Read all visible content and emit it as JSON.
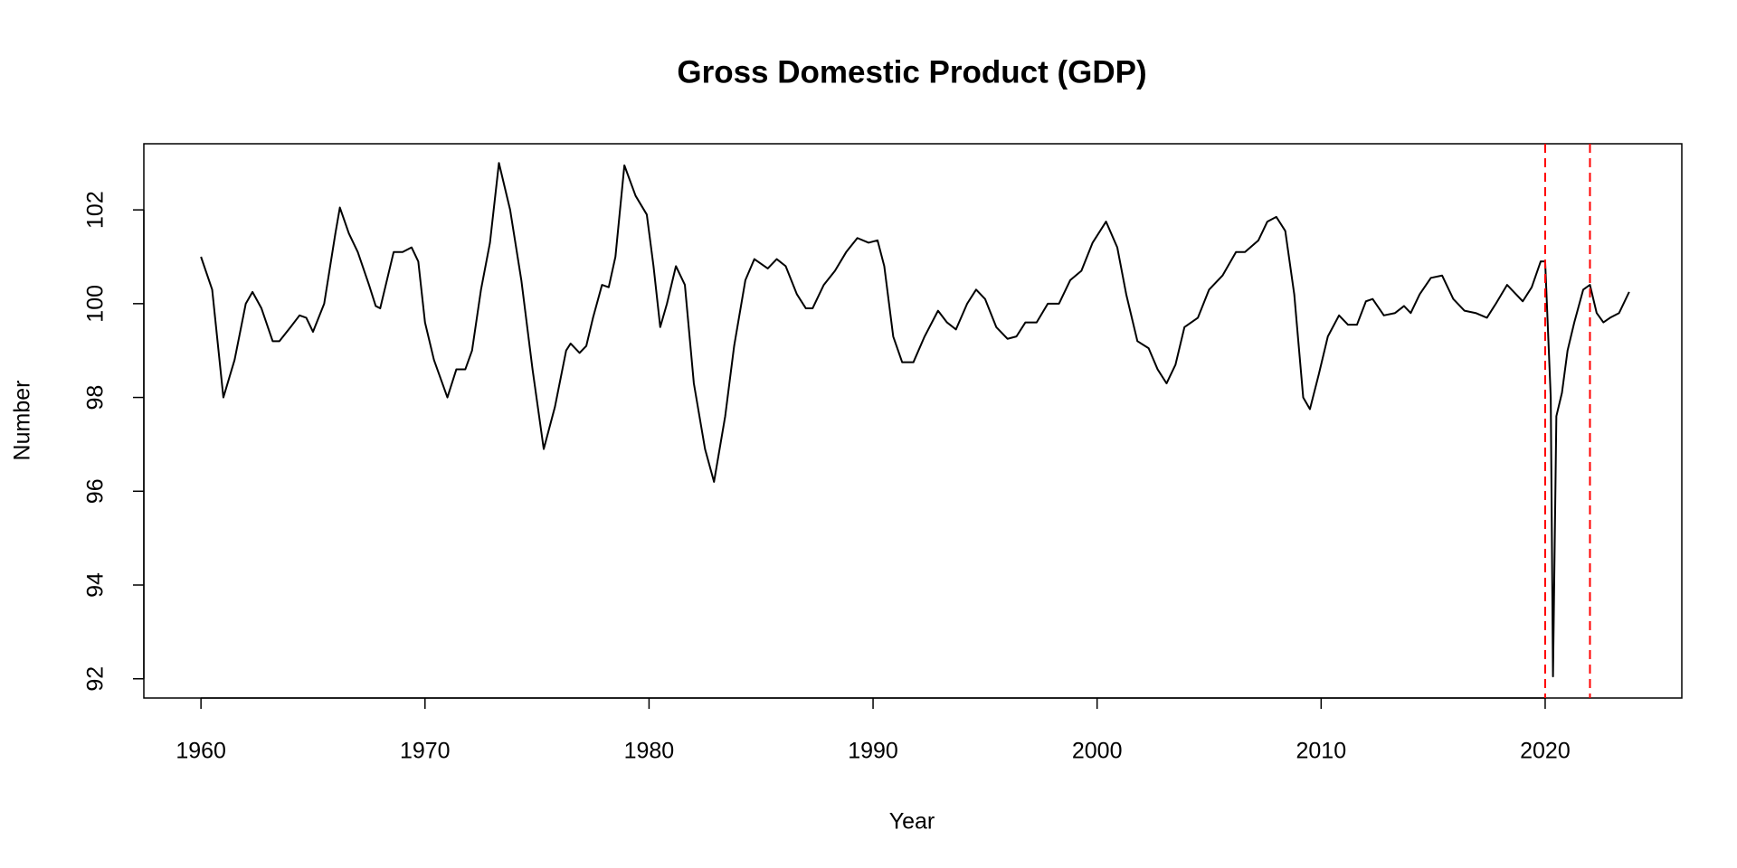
{
  "chart_data": {
    "type": "line",
    "title": "Gross Domestic Product (GDP)",
    "x_label": "Year",
    "y_label": "Number",
    "x": [
      1960.0,
      1960.5,
      1961.0,
      1961.5,
      1962.0,
      1962.3,
      1962.7,
      1963.2,
      1963.5,
      1964.0,
      1964.4,
      1964.7,
      1965.0,
      1965.5,
      1966.0,
      1966.2,
      1966.6,
      1967.0,
      1967.5,
      1967.8,
      1968.0,
      1968.3,
      1968.6,
      1969.0,
      1969.4,
      1969.7,
      1970.0,
      1970.4,
      1971.0,
      1971.4,
      1971.8,
      1972.1,
      1972.5,
      1972.9,
      1973.3,
      1973.8,
      1974.3,
      1974.8,
      1975.3,
      1975.8,
      1976.3,
      1976.5,
      1976.9,
      1977.2,
      1977.5,
      1977.9,
      1978.2,
      1978.5,
      1978.9,
      1979.4,
      1979.9,
      1980.2,
      1980.5,
      1980.8,
      1981.2,
      1981.6,
      1982.0,
      1982.5,
      1982.9,
      1983.4,
      1983.8,
      1984.3,
      1984.7,
      1985.3,
      1985.7,
      1986.1,
      1986.6,
      1987.0,
      1987.3,
      1987.8,
      1988.3,
      1988.8,
      1989.3,
      1989.8,
      1990.2,
      1990.5,
      1990.9,
      1991.3,
      1991.8,
      1992.3,
      1992.9,
      1993.3,
      1993.7,
      1994.2,
      1994.6,
      1995.0,
      1995.5,
      1996.0,
      1996.4,
      1996.8,
      1997.3,
      1997.8,
      1998.3,
      1998.8,
      1999.3,
      1999.8,
      2000.4,
      2000.9,
      2001.3,
      2001.8,
      2002.3,
      2002.7,
      2003.1,
      2003.5,
      2003.9,
      2004.5,
      2005.0,
      2005.6,
      2006.2,
      2006.6,
      2007.2,
      2007.6,
      2008.0,
      2008.4,
      2008.8,
      2009.2,
      2009.5,
      2009.9,
      2010.3,
      2010.8,
      2011.2,
      2011.6,
      2012.0,
      2012.3,
      2012.8,
      2013.3,
      2013.7,
      2014.0,
      2014.4,
      2014.9,
      2015.4,
      2015.9,
      2016.4,
      2016.9,
      2017.4,
      2017.8,
      2018.3,
      2018.7,
      2019.0,
      2019.4,
      2019.8,
      2020.0,
      2020.25,
      2020.35,
      2020.5,
      2020.75,
      2021.0,
      2021.3,
      2021.7,
      2022.0,
      2022.3,
      2022.6,
      2022.9,
      2023.3,
      2023.75
    ],
    "series": [
      {
        "color": "#000000",
        "values": [
          101.0,
          100.3,
          98.0,
          98.8,
          100.0,
          100.25,
          99.9,
          99.2,
          99.2,
          99.5,
          99.75,
          99.7,
          99.4,
          100.0,
          101.5,
          102.05,
          101.5,
          101.1,
          100.4,
          99.95,
          99.9,
          100.5,
          101.1,
          101.1,
          101.2,
          100.9,
          99.6,
          98.8,
          98.0,
          98.6,
          98.6,
          99.0,
          100.3,
          101.3,
          103.0,
          102.0,
          100.5,
          98.6,
          96.9,
          97.8,
          99.0,
          99.15,
          98.95,
          99.1,
          99.7,
          100.4,
          100.35,
          101.0,
          102.95,
          102.3,
          101.9,
          100.8,
          99.5,
          100.0,
          100.8,
          100.4,
          98.3,
          96.9,
          96.2,
          97.6,
          99.1,
          100.5,
          100.95,
          100.75,
          100.95,
          100.8,
          100.2,
          99.9,
          99.9,
          100.4,
          100.7,
          101.1,
          101.4,
          101.3,
          101.35,
          100.8,
          99.3,
          98.75,
          98.75,
          99.3,
          99.85,
          99.6,
          99.45,
          100.0,
          100.3,
          100.1,
          99.5,
          99.25,
          99.3,
          99.6,
          99.6,
          100.0,
          100.0,
          100.5,
          100.7,
          101.3,
          101.75,
          101.2,
          100.2,
          99.2,
          99.05,
          98.6,
          98.3,
          98.7,
          99.5,
          99.7,
          100.3,
          100.6,
          101.1,
          101.1,
          101.35,
          101.75,
          101.85,
          101.55,
          100.2,
          98.0,
          97.75,
          98.5,
          99.3,
          99.75,
          99.55,
          99.55,
          100.05,
          100.1,
          99.75,
          99.8,
          99.95,
          99.8,
          100.2,
          100.55,
          100.6,
          100.1,
          99.85,
          99.8,
          99.7,
          100.0,
          100.4,
          100.2,
          100.05,
          100.35,
          100.9,
          100.9,
          98.0,
          92.05,
          97.6,
          98.1,
          99.0,
          99.6,
          100.3,
          100.4,
          99.8,
          99.6,
          99.7,
          99.8,
          100.25
        ]
      }
    ],
    "vlines": [
      2020,
      2022
    ],
    "vline_color": "#ff0000",
    "xlim": [
      1957.45,
      2026.1
    ],
    "ylim": [
      91.59,
      103.41
    ],
    "xticks": [
      1960,
      1970,
      1980,
      1990,
      2000,
      2010,
      2020
    ],
    "yticks": [
      92,
      94,
      96,
      98,
      100,
      102
    ]
  }
}
